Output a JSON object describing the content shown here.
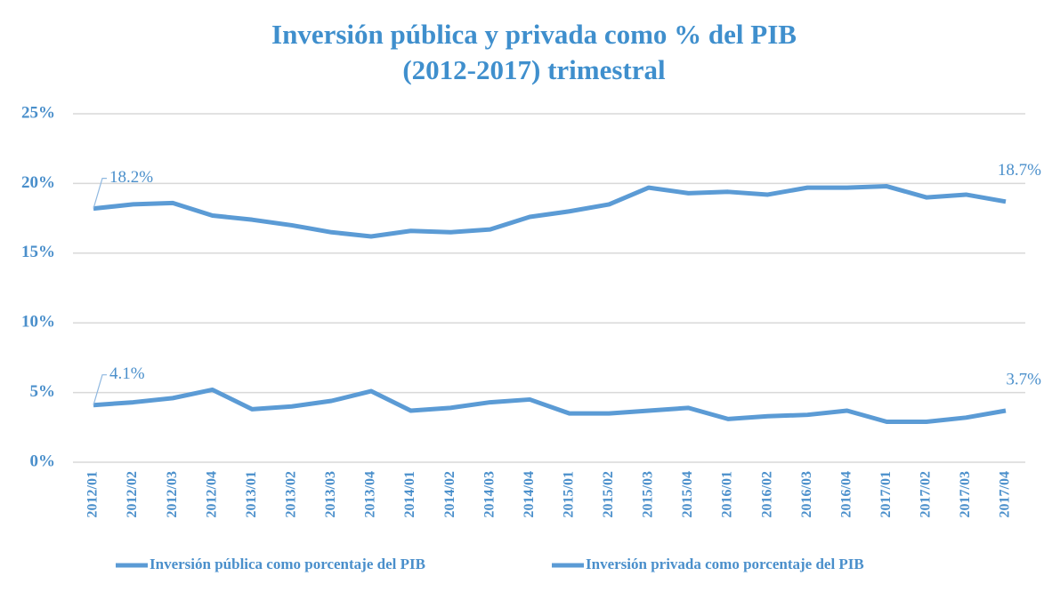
{
  "chart_data": {
    "type": "line",
    "title": [
      "Inversión pública y privada como % del PIB",
      "(2012-2017) trimestral"
    ],
    "categories": [
      "2012/01",
      "2012/02",
      "2012/03",
      "2012/04",
      "2013/01",
      "2013/02",
      "2013/03",
      "2013/04",
      "2014/01",
      "2014/02",
      "2014/03",
      "2014/04",
      "2015/01",
      "2015/02",
      "2015/03",
      "2015/04",
      "2016/01",
      "2016/02",
      "2016/03",
      "2016/04",
      "2017/01",
      "2017/02",
      "2017/03",
      "2017/04"
    ],
    "series": [
      {
        "name": "Inversión pública como porcentaje del PIB",
        "color": "#5b9bd5",
        "values": [
          4.1,
          4.3,
          4.6,
          5.2,
          3.8,
          4.0,
          4.4,
          5.1,
          3.7,
          3.9,
          4.3,
          4.5,
          3.5,
          3.5,
          3.7,
          3.9,
          3.1,
          3.3,
          3.4,
          3.7,
          2.9,
          2.9,
          3.2,
          3.7
        ],
        "value_labels": [
          "4.1%",
          null,
          null,
          null,
          null,
          null,
          null,
          null,
          null,
          null,
          null,
          null,
          null,
          null,
          null,
          null,
          null,
          null,
          null,
          null,
          null,
          null,
          null,
          "3.7%"
        ]
      },
      {
        "name": "Inversión privada como porcentaje del PIB",
        "color": "#5b9bd5",
        "values": [
          18.2,
          18.5,
          18.6,
          17.7,
          17.4,
          17.0,
          16.5,
          16.2,
          16.6,
          16.5,
          16.7,
          17.6,
          18.0,
          18.5,
          19.7,
          19.3,
          19.4,
          19.2,
          19.7,
          19.7,
          19.8,
          19.0,
          19.2,
          18.7
        ],
        "value_labels": [
          "18.2%",
          null,
          null,
          null,
          null,
          null,
          null,
          null,
          null,
          null,
          null,
          null,
          null,
          null,
          null,
          null,
          null,
          null,
          null,
          null,
          null,
          null,
          null,
          "18.7%"
        ]
      }
    ],
    "ylim": [
      0,
      25
    ],
    "yticks": [
      {
        "value": 0,
        "label": "0%"
      },
      {
        "value": 5,
        "label": "5%"
      },
      {
        "value": 10,
        "label": "10%"
      },
      {
        "value": 15,
        "label": "15%"
      },
      {
        "value": 20,
        "label": "20%"
      },
      {
        "value": 25,
        "label": "25%"
      }
    ],
    "grid": true,
    "legend": "bottom"
  }
}
